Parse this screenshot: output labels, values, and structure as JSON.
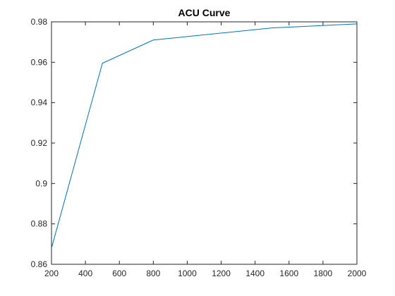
{
  "chart_data": {
    "type": "line",
    "title": "ACU Curve",
    "xlabel": "",
    "ylabel": "",
    "xlim": [
      200,
      2000
    ],
    "ylim": [
      0.86,
      0.98
    ],
    "x_ticks": [
      200,
      400,
      600,
      800,
      1000,
      1200,
      1400,
      1600,
      1800,
      2000
    ],
    "x_tick_labels": [
      "200",
      "400",
      "600",
      "800",
      "1000",
      "1200",
      "1400",
      "1600",
      "1800",
      "2000"
    ],
    "y_ticks": [
      0.86,
      0.88,
      0.9,
      0.92,
      0.94,
      0.96,
      0.98
    ],
    "y_tick_labels": [
      "0.86",
      "0.88",
      "0.9",
      "0.92",
      "0.94",
      "0.96",
      "0.98"
    ],
    "grid": false,
    "series": [
      {
        "color": "#0072bd",
        "x": [
          200,
          500,
          800,
          1500,
          2000
        ],
        "y": [
          0.868,
          0.9595,
          0.971,
          0.977,
          0.979
        ]
      }
    ]
  }
}
